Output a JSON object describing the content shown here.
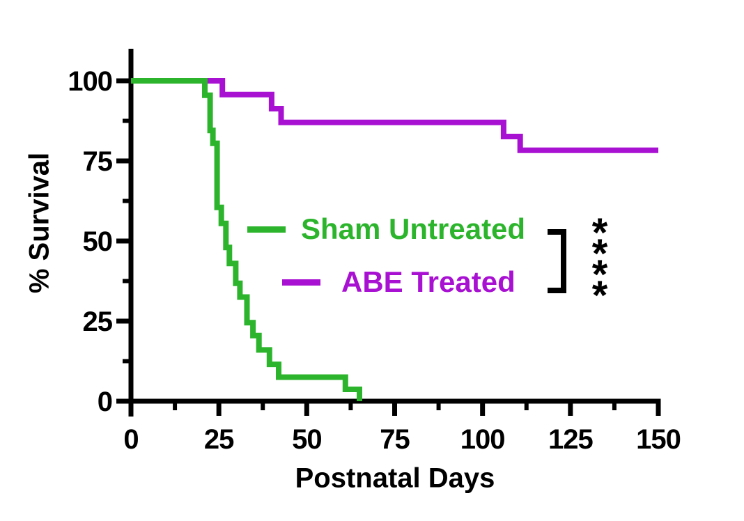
{
  "figure": {
    "y_axis_title": "% Survival",
    "x_axis_title": "Postnatal Days"
  },
  "legend": {
    "items": [
      {
        "label": "Sham Untreated",
        "color": "#2CB52C"
      },
      {
        "label": "ABE Treated",
        "color": "#A810D2"
      }
    ]
  },
  "annotation": {
    "significance": "****",
    "stars": [
      "*",
      "*",
      "*",
      "*"
    ]
  },
  "colors": {
    "axis": "#000000",
    "sham": "#2CB52C",
    "abe": "#A810D2"
  },
  "chart_data": {
    "type": "line",
    "subtype": "kaplan-meier-step-survival",
    "title": "",
    "xlabel": "Postnatal Days",
    "ylabel": "% Survival",
    "xlim": [
      0,
      150
    ],
    "ylim": [
      0,
      100
    ],
    "x_ticks": [
      0,
      25,
      50,
      75,
      100,
      125,
      150
    ],
    "x_minor_ticks": [
      12.5,
      37.5,
      62.5,
      87.5,
      112.5,
      137.5
    ],
    "y_ticks": [
      100,
      75,
      50,
      25,
      0
    ],
    "y_minor_ticks": [
      87.5,
      62.5,
      37.5,
      12.5
    ],
    "grid": false,
    "legend_position": "inside-center",
    "significance": "**** (bracket comparing the two curves)",
    "series": [
      {
        "name": "ABE Treated",
        "color": "#A810D2",
        "points": [
          [
            0,
            100
          ],
          [
            26,
            100
          ],
          [
            26,
            95.7
          ],
          [
            40,
            95.7
          ],
          [
            40,
            91.3
          ],
          [
            42.7,
            91.3
          ],
          [
            42.7,
            87
          ],
          [
            106,
            87
          ],
          [
            106,
            82.6
          ],
          [
            110.7,
            82.6
          ],
          [
            110.7,
            78.3
          ],
          [
            150,
            78.3
          ]
        ]
      },
      {
        "name": "Sham Untreated",
        "color": "#2CB52C",
        "points": [
          [
            0,
            100
          ],
          [
            21,
            100
          ],
          [
            21,
            95.5
          ],
          [
            22.5,
            95.5
          ],
          [
            22.5,
            84.5
          ],
          [
            23.3,
            84.5
          ],
          [
            23.3,
            80.5
          ],
          [
            24.5,
            80.5
          ],
          [
            24.5,
            60.5
          ],
          [
            25.7,
            60.5
          ],
          [
            25.7,
            55.5
          ],
          [
            27,
            55.5
          ],
          [
            27,
            48
          ],
          [
            28,
            48
          ],
          [
            28,
            43
          ],
          [
            29.8,
            43
          ],
          [
            29.8,
            36.8
          ],
          [
            31,
            36.8
          ],
          [
            31,
            32.5
          ],
          [
            33,
            32.5
          ],
          [
            33,
            24.5
          ],
          [
            34.7,
            24.5
          ],
          [
            34.7,
            20.5
          ],
          [
            36.4,
            20.5
          ],
          [
            36.4,
            16
          ],
          [
            39.4,
            16
          ],
          [
            39.4,
            11.5
          ],
          [
            42,
            11.5
          ],
          [
            42,
            7.5
          ],
          [
            61,
            7.5
          ],
          [
            61,
            3.7
          ],
          [
            65,
            3.7
          ],
          [
            65,
            0
          ]
        ]
      }
    ]
  }
}
